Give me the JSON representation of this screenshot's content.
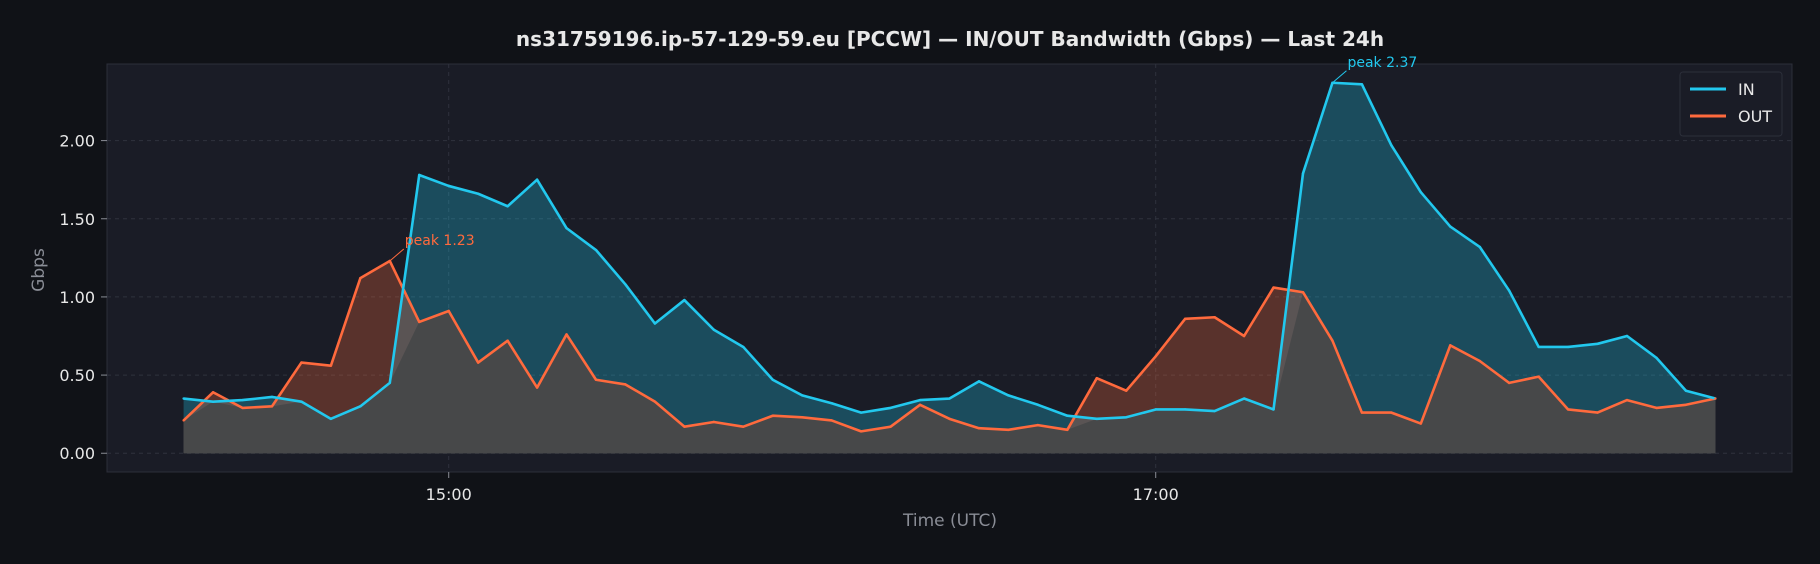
{
  "colors": {
    "background": "#101217",
    "plot_background": "#1a1c26",
    "in_line": "#22c8ee",
    "out_line": "#ff6a3d",
    "overlap_fill": "#474849",
    "text": "#e8e8e8",
    "muted_text": "#8a8d96"
  },
  "chart_data": {
    "type": "area",
    "title": "ns31759196.ip-57-129-59.eu [PCCW] — IN/OUT Bandwidth (Gbps) — Last 24h",
    "xlabel": "Time (UTC)",
    "ylabel": "Gbps",
    "x_tick_labels": [
      {
        "label": "15:00",
        "index": 9
      },
      {
        "label": "17:00",
        "index": 33
      }
    ],
    "y_ticks": [
      {
        "value": 0.0,
        "label": "0.00"
      },
      {
        "value": 0.5,
        "label": "0.50"
      },
      {
        "value": 1.0,
        "label": "1.00"
      },
      {
        "value": 1.5,
        "label": "1.50"
      },
      {
        "value": 2.0,
        "label": "2.00"
      }
    ],
    "ylim": [
      -0.12,
      2.49
    ],
    "x_index_range": [
      -2.6,
      54.6
    ],
    "grid": true,
    "legend_position": "top-right",
    "series": [
      {
        "name": "IN",
        "color": "#22c8ee",
        "values": [
          0.35,
          0.33,
          0.34,
          0.36,
          0.33,
          0.22,
          0.3,
          0.45,
          1.78,
          1.71,
          1.66,
          1.58,
          1.75,
          1.44,
          1.3,
          1.08,
          0.83,
          0.98,
          0.79,
          0.68,
          0.47,
          0.37,
          0.32,
          0.26,
          0.29,
          0.34,
          0.35,
          0.46,
          0.37,
          0.31,
          0.24,
          0.22,
          0.23,
          0.28,
          0.28,
          0.27,
          0.35,
          0.28,
          1.79,
          2.37,
          2.36,
          1.97,
          1.67,
          1.45,
          1.32,
          1.04,
          0.68,
          0.68,
          0.7,
          0.75,
          0.61,
          0.4,
          0.35
        ]
      },
      {
        "name": "OUT",
        "color": "#ff6a3d",
        "values": [
          0.21,
          0.39,
          0.29,
          0.3,
          0.58,
          0.56,
          1.12,
          1.23,
          0.84,
          0.91,
          0.58,
          0.72,
          0.42,
          0.76,
          0.47,
          0.44,
          0.33,
          0.17,
          0.2,
          0.17,
          0.24,
          0.23,
          0.21,
          0.14,
          0.17,
          0.31,
          0.22,
          0.16,
          0.15,
          0.18,
          0.15,
          0.48,
          0.4,
          0.62,
          0.86,
          0.87,
          0.75,
          1.06,
          1.03,
          0.72,
          0.26,
          0.26,
          0.19,
          0.69,
          0.59,
          0.45,
          0.49,
          0.28,
          0.26,
          0.34,
          0.29,
          0.31,
          0.35
        ]
      }
    ],
    "annotations": [
      {
        "series": "OUT",
        "index": 7,
        "value": 1.23,
        "text": "peak 1.23"
      },
      {
        "series": "IN",
        "index": 39,
        "value": 2.37,
        "text": "peak 2.37"
      }
    ]
  }
}
